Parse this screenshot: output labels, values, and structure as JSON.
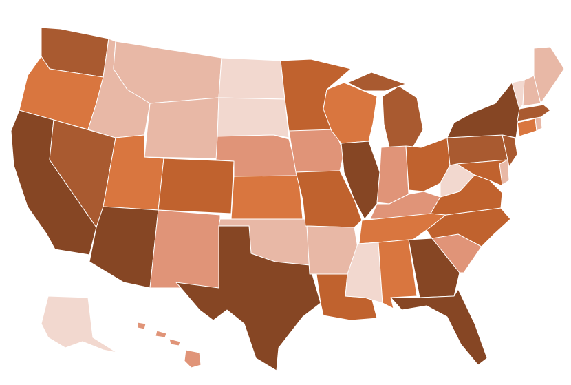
{
  "map": {
    "type": "us-state-choropleth",
    "palette": {
      "1": "#f2d8cf",
      "2": "#e8b8a6",
      "3": "#e09478",
      "4": "#d9763f",
      "5": "#c0622e",
      "6": "#a95a30",
      "7": "#864624"
    },
    "states": [
      {
        "id": "WA",
        "level": 6
      },
      {
        "id": "OR",
        "level": 4
      },
      {
        "id": "CA",
        "level": 7
      },
      {
        "id": "NV",
        "level": 6
      },
      {
        "id": "ID",
        "level": 2
      },
      {
        "id": "MT",
        "level": 2
      },
      {
        "id": "WY",
        "level": 2
      },
      {
        "id": "UT",
        "level": 4
      },
      {
        "id": "AZ",
        "level": 7
      },
      {
        "id": "CO",
        "level": 5
      },
      {
        "id": "NM",
        "level": 3
      },
      {
        "id": "ND",
        "level": 1
      },
      {
        "id": "SD",
        "level": 1
      },
      {
        "id": "NE",
        "level": 3
      },
      {
        "id": "KS",
        "level": 4
      },
      {
        "id": "OK",
        "level": 2
      },
      {
        "id": "TX",
        "level": 7
      },
      {
        "id": "MN",
        "level": 5
      },
      {
        "id": "IA",
        "level": 3
      },
      {
        "id": "MO",
        "level": 5
      },
      {
        "id": "AR",
        "level": 2
      },
      {
        "id": "LA",
        "level": 5
      },
      {
        "id": "WI",
        "level": 4
      },
      {
        "id": "IL",
        "level": 7
      },
      {
        "id": "MI",
        "level": 6
      },
      {
        "id": "IN",
        "level": 3
      },
      {
        "id": "OH",
        "level": 5
      },
      {
        "id": "KY",
        "level": 3
      },
      {
        "id": "TN",
        "level": 4
      },
      {
        "id": "MS",
        "level": 1
      },
      {
        "id": "AL",
        "level": 4
      },
      {
        "id": "GA",
        "level": 7
      },
      {
        "id": "FL",
        "level": 7
      },
      {
        "id": "SC",
        "level": 3
      },
      {
        "id": "NC",
        "level": 5
      },
      {
        "id": "VA",
        "level": 5
      },
      {
        "id": "WV",
        "level": 1
      },
      {
        "id": "PA",
        "level": 6
      },
      {
        "id": "NY",
        "level": 7
      },
      {
        "id": "NJ",
        "level": 6
      },
      {
        "id": "DE",
        "level": 2
      },
      {
        "id": "MD",
        "level": 5
      },
      {
        "id": "CT",
        "level": 4
      },
      {
        "id": "RI",
        "level": 2
      },
      {
        "id": "MA",
        "level": 6
      },
      {
        "id": "VT",
        "level": 1
      },
      {
        "id": "NH",
        "level": 2
      },
      {
        "id": "ME",
        "level": 2
      },
      {
        "id": "AK",
        "level": 1
      },
      {
        "id": "HI",
        "level": 3
      }
    ]
  }
}
